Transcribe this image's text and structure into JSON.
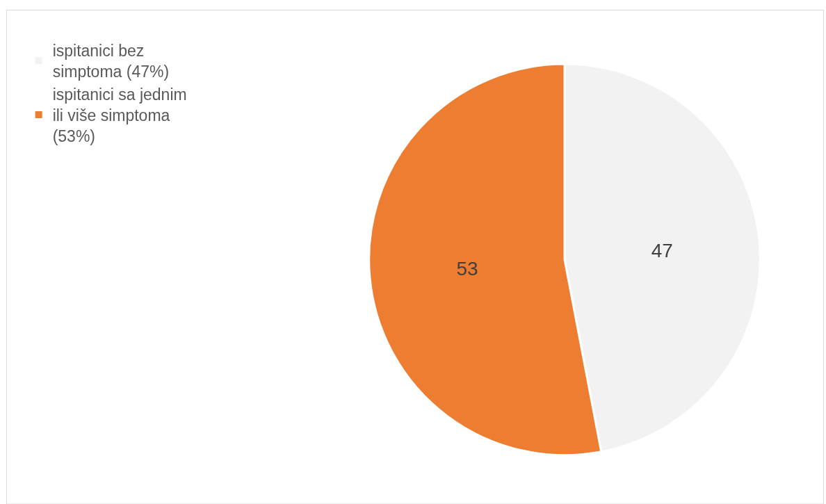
{
  "chart_data": {
    "type": "pie",
    "categories": [
      "ispitanici bez simptoma (47%)",
      "ispitanici sa jednim ili više simptoma (53%)"
    ],
    "values": [
      47,
      53
    ],
    "colors": [
      "#f2f2f2",
      "#ed7d31"
    ],
    "data_labels": true,
    "legend": "top left"
  }
}
